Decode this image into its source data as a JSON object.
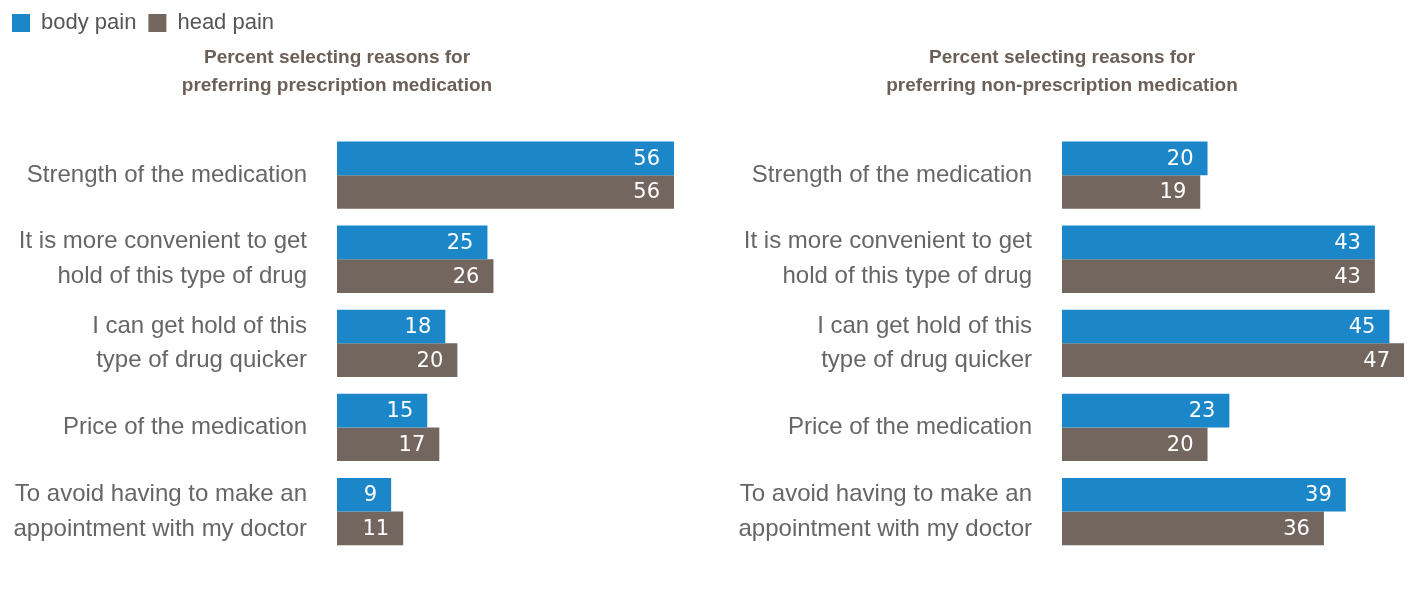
{
  "chart_data": [
    {
      "type": "bar",
      "orientation": "horizontal",
      "title": "Percent selecting reasons for\npreferring prescription medication",
      "categories": [
        "Strength of the medication",
        "It is more convenient to get hold of this type of drug",
        "I can get hold of this type of drug quicker",
        "Price of the medication",
        "To avoid having to make an appointment with my doctor"
      ],
      "series": [
        {
          "name": "body pain",
          "color": "#1b87c9",
          "values": [
            56,
            25,
            18,
            15,
            9
          ]
        },
        {
          "name": "head pain",
          "color": "#72665f",
          "values": [
            56,
            26,
            20,
            17,
            11
          ]
        }
      ],
      "xlim": [
        0,
        56
      ],
      "tick_labels": "y",
      "data_labels": true,
      "grid": false,
      "legend": "top left"
    },
    {
      "type": "bar",
      "orientation": "horizontal",
      "title": "Percent selecting reasons for\npreferring non-prescription medication",
      "categories": [
        "Strength of the medication",
        "It is more convenient to get hold of this type of drug",
        "I can get hold of this type of drug quicker",
        "Price of the medication",
        "To avoid having to make an appointment with my doctor"
      ],
      "series": [
        {
          "color": "#1b87c9",
          "values": [
            20,
            43,
            45,
            23,
            39
          ]
        },
        {
          "color": "#72665f",
          "values": [
            19,
            43,
            47,
            20,
            36
          ]
        }
      ],
      "xlim": [
        0,
        47
      ],
      "tick_labels": "y",
      "data_labels": true,
      "grid": false,
      "legend": false
    }
  ]
}
